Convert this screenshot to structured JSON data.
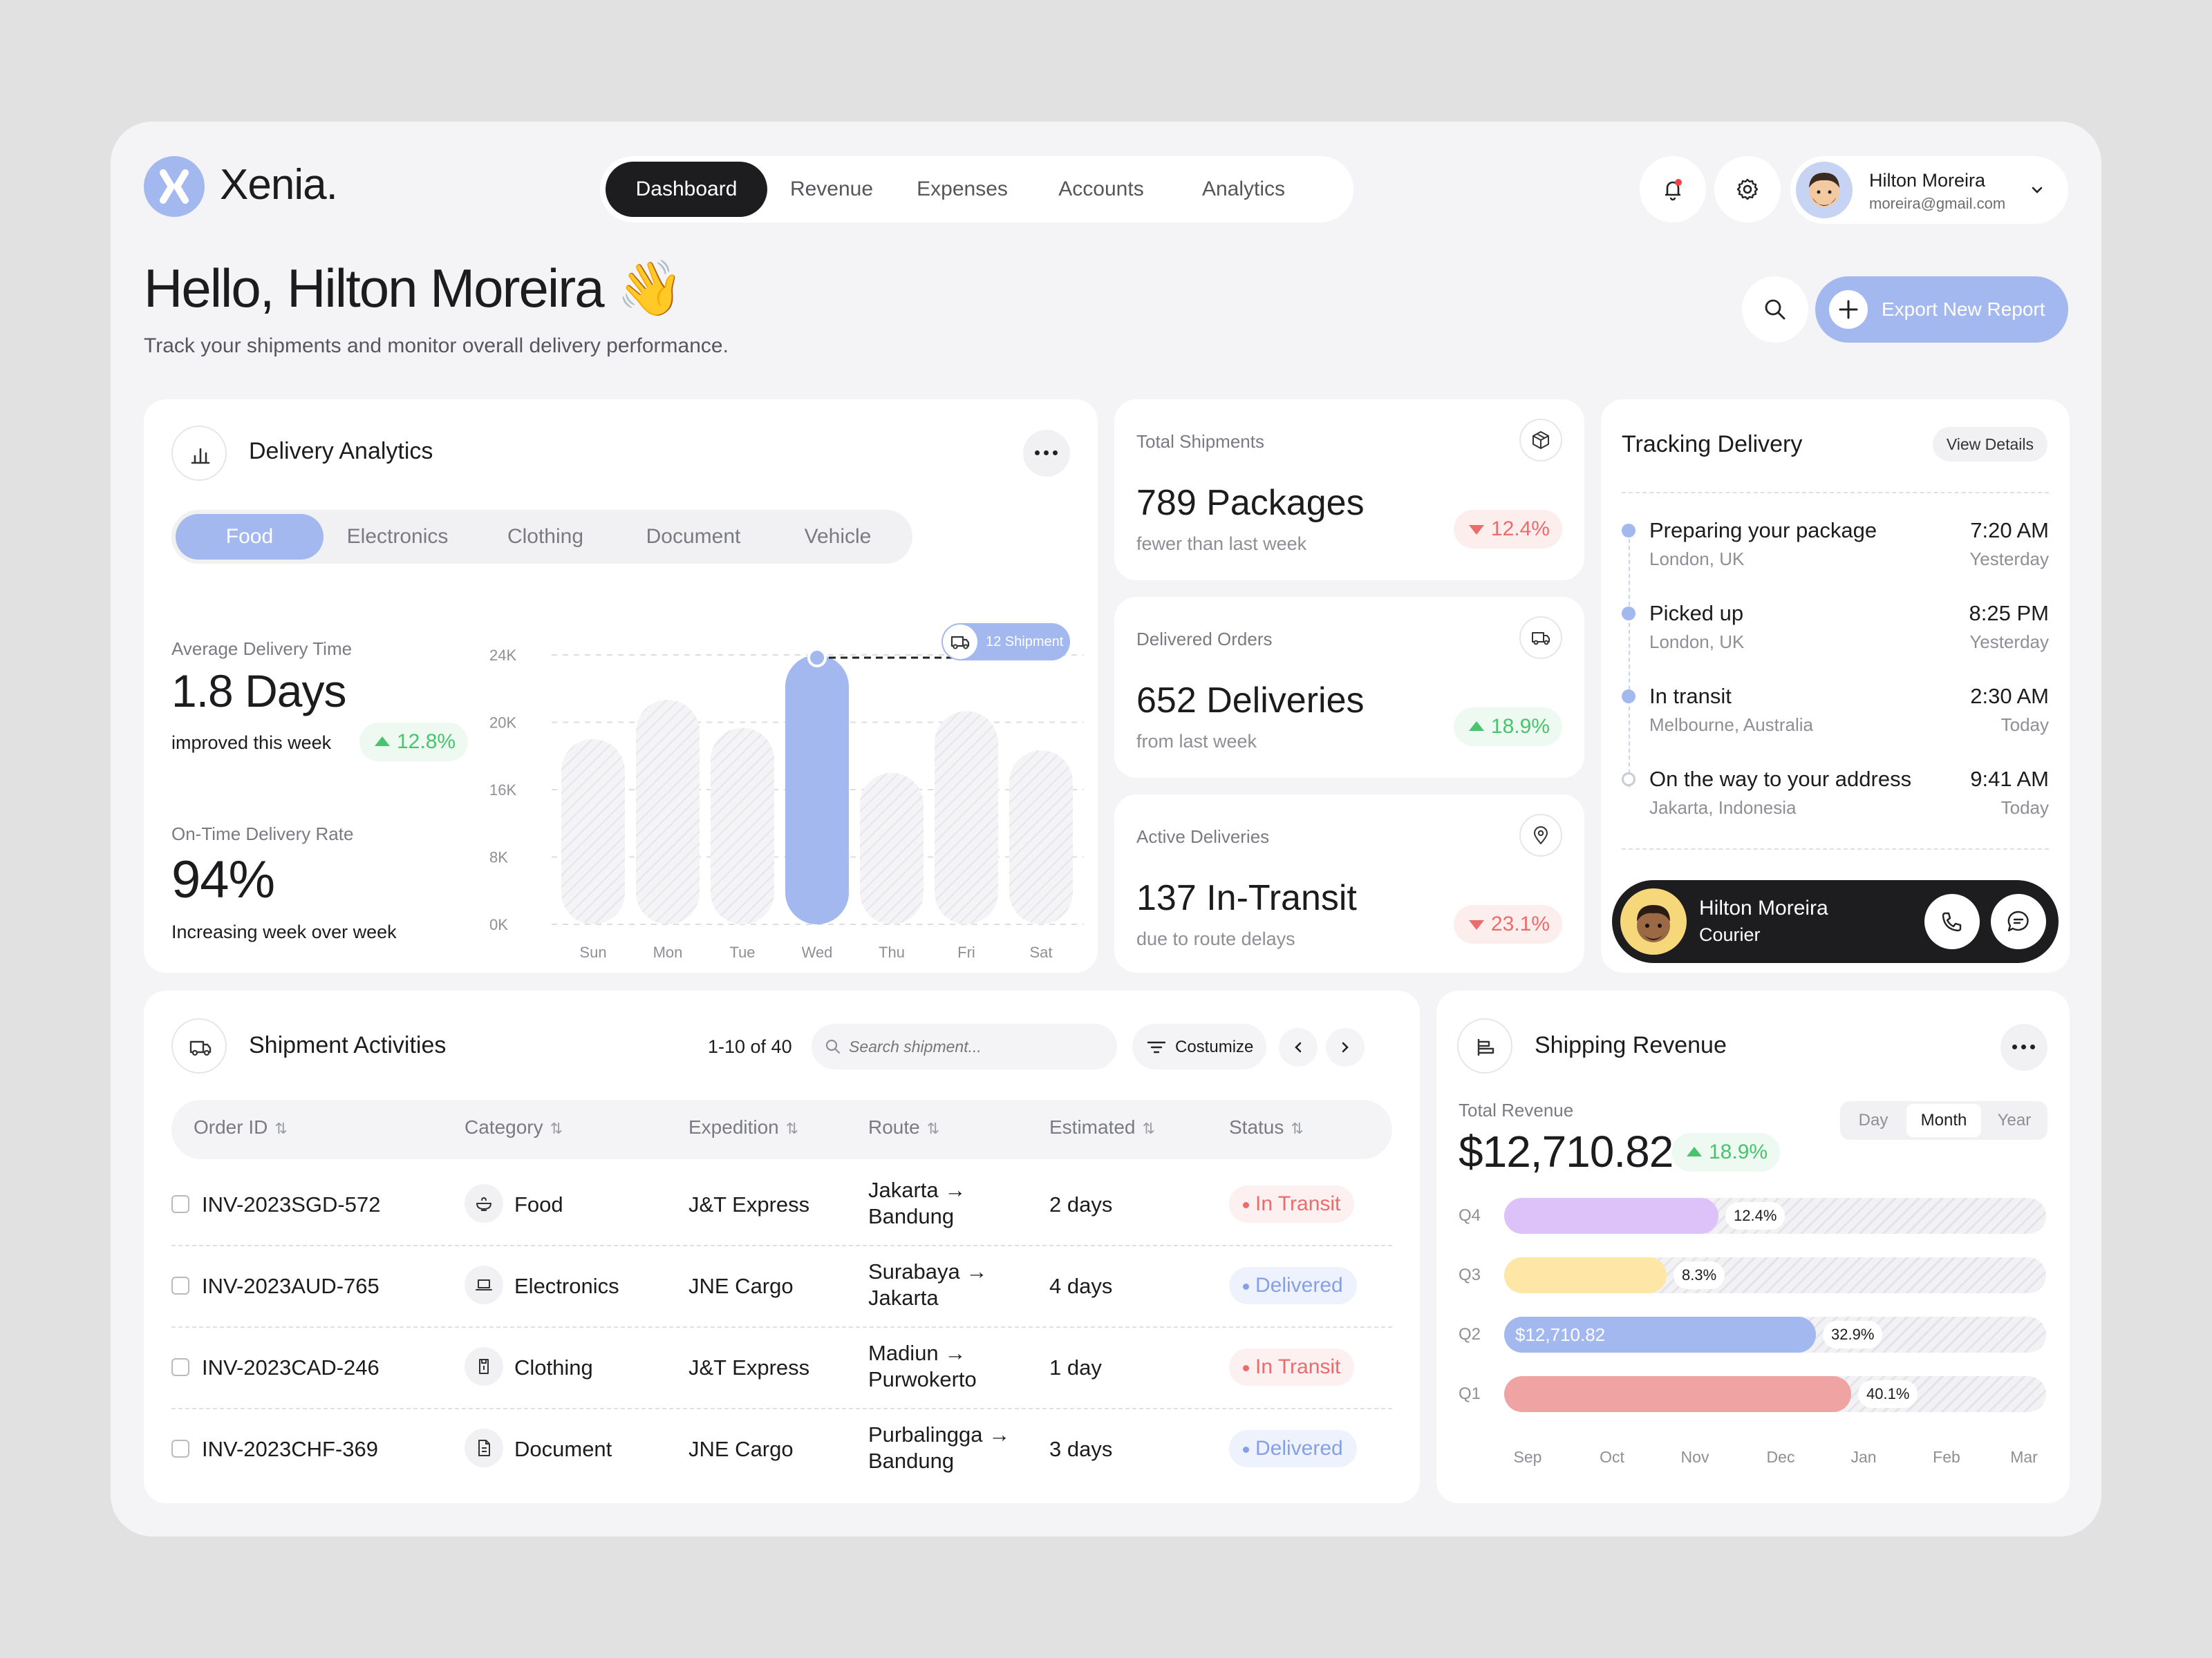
{
  "brand": {
    "name": "Xenia."
  },
  "nav": {
    "items": [
      "Dashboard",
      "Revenue",
      "Expenses",
      "Accounts",
      "Analytics"
    ],
    "active": "Dashboard"
  },
  "user": {
    "name": "Hilton Moreira",
    "email": "moreira@gmail.com"
  },
  "greeting": {
    "hello": "Hello,",
    "name": "Hilton Moreira",
    "emoji": "👋",
    "subtitle": "Track your shipments and monitor overall delivery performance."
  },
  "actions": {
    "export": "Export New Report"
  },
  "analytics": {
    "title": "Delivery Analytics",
    "tabs": [
      "Food",
      "Electronics",
      "Clothing",
      "Document",
      "Vehicle"
    ],
    "active_tab": "Food",
    "avg_label": "Average Delivery Time",
    "avg_value": "1.8 Days",
    "avg_note": "improved this week",
    "avg_change": "12.8%",
    "rate_label": "On-Time Delivery Rate",
    "rate_value": "94%",
    "rate_note": "Increasing week over week",
    "tooltip": "12 Shipment"
  },
  "chart_data": {
    "type": "bar",
    "categories": [
      "Sun",
      "Mon",
      "Tue",
      "Wed",
      "Thu",
      "Fri",
      "Sat"
    ],
    "values": [
      16.5,
      20,
      17.5,
      24,
      13.5,
      19,
      15.5
    ],
    "highlight": "Wed",
    "yticks": [
      "24K",
      "20K",
      "16K",
      "8K",
      "0K"
    ],
    "ylim": [
      0,
      24
    ],
    "colors": {
      "highlight": "#a3b8ef",
      "base": "#f0f0f2"
    }
  },
  "metrics": [
    {
      "label": "Total Shipments",
      "value": "789 Packages",
      "note": "fewer than last week",
      "change": "12.4%",
      "direction": "down",
      "icon": "package-icon"
    },
    {
      "label": "Delivered Orders",
      "value": "652 Deliveries",
      "note": "from last week",
      "change": "18.9%",
      "direction": "up",
      "icon": "truck-icon"
    },
    {
      "label": "Active Deliveries",
      "value": "137 In-Transit",
      "note": "due to route delays",
      "change": "23.1%",
      "direction": "down",
      "icon": "location-pin-icon"
    }
  ],
  "tracking": {
    "title": "Tracking Delivery",
    "details": "View Details",
    "steps": [
      {
        "title": "Preparing your package",
        "location": "London, UK",
        "time": "7:20 AM",
        "day": "Yesterday"
      },
      {
        "title": "Picked up",
        "location": "London, UK",
        "time": "8:25 PM",
        "day": "Yesterday"
      },
      {
        "title": "In transit",
        "location": "Melbourne, Australia",
        "time": "2:30 AM",
        "day": "Today"
      },
      {
        "title": "On the way to your address",
        "location": "Jakarta, Indonesia",
        "time": "9:41 AM",
        "day": "Today"
      }
    ],
    "courier": {
      "name": "Hilton Moreira",
      "role": "Courier"
    }
  },
  "shipments": {
    "title": "Shipment Activities",
    "count": "1-10 of 40",
    "search_placeholder": "Search shipment...",
    "customize": "Costumize",
    "columns": [
      "Order ID",
      "Category",
      "Expedition",
      "Route",
      "Estimated",
      "Status"
    ],
    "rows": [
      {
        "id": "INV-2023SGD-572",
        "category": "Food",
        "expedition": "J&T Express",
        "route1": "Jakarta →",
        "route2": "Bandung",
        "estimated": "2 days",
        "status": "In Transit"
      },
      {
        "id": "INV-2023AUD-765",
        "category": "Electronics",
        "expedition": "JNE Cargo",
        "route1": "Surabaya →",
        "route2": "Jakarta",
        "estimated": "4 days",
        "status": "Delivered"
      },
      {
        "id": "INV-2023CAD-246",
        "category": "Clothing",
        "expedition": "J&T Express",
        "route1": "Madiun →",
        "route2": "Purwokerto",
        "estimated": "1 day",
        "status": "In Transit"
      },
      {
        "id": "INV-2023CHF-369",
        "category": "Document",
        "expedition": "JNE Cargo",
        "route1": "Purbalingga →",
        "route2": "Bandung",
        "estimated": "3 days",
        "status": "Delivered"
      }
    ]
  },
  "revenue": {
    "title": "Shipping Revenue",
    "total_label": "Total Revenue",
    "total_value": "$12,710.82",
    "change": "18.9%",
    "ranges": [
      "Day",
      "Month",
      "Year"
    ],
    "active_range": "Month",
    "quarters": [
      {
        "q": "Q4",
        "pct": "12.4%",
        "fill": 0.395,
        "color": "#dcc2f8",
        "inner": ""
      },
      {
        "q": "Q3",
        "pct": "8.3%",
        "fill": 0.3,
        "color": "#fde6a6",
        "inner": ""
      },
      {
        "q": "Q2",
        "pct": "32.9%",
        "fill": 0.575,
        "color": "#a3b8ef",
        "inner": "$12,710.82"
      },
      {
        "q": "Q1",
        "pct": "40.1%",
        "fill": 0.64,
        "color": "#f0a3a3",
        "inner": ""
      }
    ],
    "months": [
      "Sep",
      "Oct",
      "Nov",
      "Dec",
      "Jan",
      "Feb",
      "Mar"
    ]
  }
}
